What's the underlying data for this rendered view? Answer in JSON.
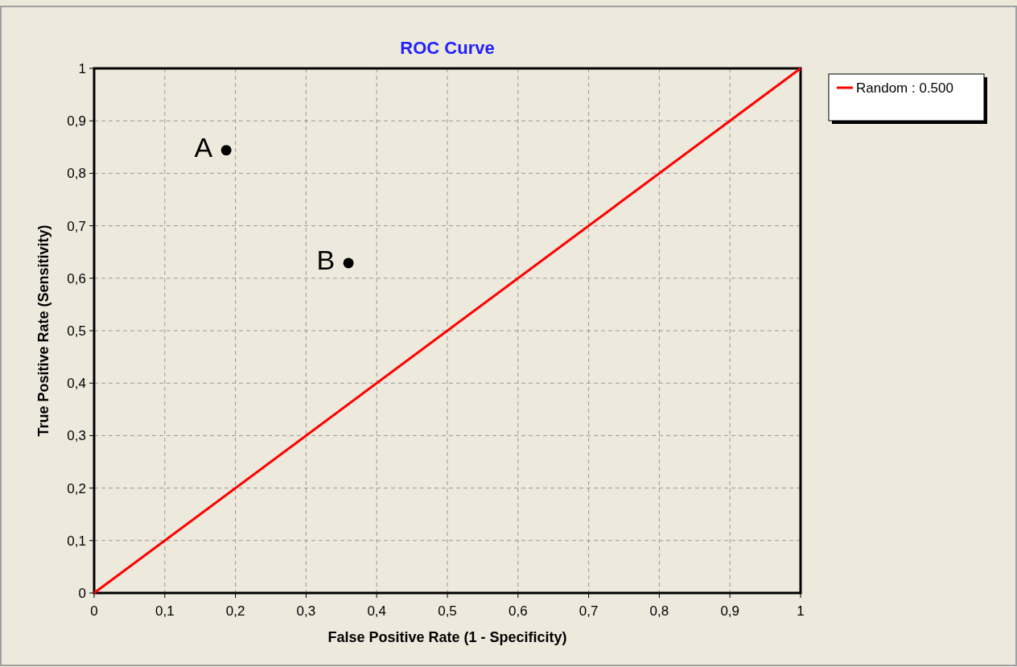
{
  "chart_data": {
    "type": "scatter",
    "title": "ROC Curve",
    "xlabel": "False Positive Rate (1 - Specificity)",
    "ylabel": "True Positive Rate (Sensitivity)",
    "xlim": [
      0,
      1
    ],
    "ylim": [
      0,
      1
    ],
    "xticks": [
      0,
      {
        "value": 0.1,
        "label": "0,1"
      },
      {
        "value": 0.2,
        "label": "0,2"
      },
      {
        "value": 0.3,
        "label": "0,3"
      },
      {
        "value": 0.4,
        "label": "0,4"
      },
      {
        "value": 0.5,
        "label": "0,5"
      },
      {
        "value": 0.6,
        "label": "0,6"
      },
      {
        "value": 0.7,
        "label": "0,7"
      },
      {
        "value": 0.8,
        "label": "0,8"
      },
      {
        "value": 0.9,
        "label": "0,9"
      },
      1
    ],
    "yticks": [
      0,
      {
        "value": 0.1,
        "label": "0,1"
      },
      {
        "value": 0.2,
        "label": "0,2"
      },
      {
        "value": 0.3,
        "label": "0,3"
      },
      {
        "value": 0.4,
        "label": "0,4"
      },
      {
        "value": 0.5,
        "label": "0,5"
      },
      {
        "value": 0.6,
        "label": "0,6"
      },
      {
        "value": 0.7,
        "label": "0,7"
      },
      {
        "value": 0.8,
        "label": "0,8"
      },
      {
        "value": 0.9,
        "label": "0,9"
      },
      1
    ],
    "grid": true,
    "legend": "top right",
    "marker": "circle",
    "series": [
      {
        "name": "Random : 0.500",
        "type": "line",
        "marker": "none",
        "color": "#ff0000",
        "x": [
          0,
          1
        ],
        "values": [
          0,
          1
        ]
      },
      {
        "name": "A",
        "color": "#000000",
        "x": [
          0.187
        ],
        "values": [
          0.844
        ]
      },
      {
        "name": "B",
        "color": "#000000",
        "x": [
          0.36
        ],
        "values": [
          0.629
        ]
      }
    ]
  }
}
